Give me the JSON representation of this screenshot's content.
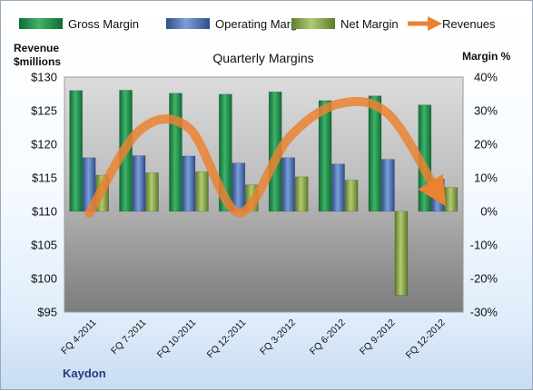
{
  "chart_data": {
    "type": "bar",
    "title": "Quarterly Margins",
    "footer": "Kaydon",
    "categories": [
      "FQ 4-2011",
      "FQ 7-2011",
      "FQ 10-2011",
      "FQ 12-2011",
      "FQ 3-2012",
      "FQ 6-2012",
      "FQ 9-2012",
      "FQ 12-2012"
    ],
    "left_axis": {
      "title_line1": "Revenue",
      "title_line2": "$millions",
      "range": [
        95,
        130
      ],
      "ticks": [
        95,
        100,
        105,
        110,
        115,
        120,
        125,
        130
      ],
      "tick_labels": [
        "$95",
        "$100",
        "$105",
        "$110",
        "$115",
        "$120",
        "$125",
        "$130"
      ]
    },
    "right_axis": {
      "title": "Margin %",
      "range": [
        -30,
        40
      ],
      "ticks": [
        -30,
        -20,
        -10,
        0,
        10,
        20,
        30,
        40
      ],
      "tick_labels": [
        "-30%",
        "-20%",
        "-10%",
        "0%",
        "10%",
        "20%",
        "30%",
        "40%"
      ]
    },
    "series": [
      {
        "name": "Gross Margin",
        "kind": "bar",
        "axis": "right",
        "color": "#1e8a4a",
        "values": [
          36.0,
          36.1,
          35.2,
          34.9,
          35.6,
          33.0,
          34.4,
          31.7
        ]
      },
      {
        "name": "Operating Margin",
        "kind": "bar",
        "axis": "right",
        "color": "#4a6fb0",
        "values": [
          16.0,
          16.6,
          16.5,
          14.4,
          16.0,
          14.1,
          15.5,
          9.6
        ]
      },
      {
        "name": "Net Margin",
        "kind": "bar",
        "axis": "right",
        "color": "#8aa84a",
        "values": [
          10.8,
          11.5,
          11.8,
          7.9,
          10.3,
          9.3,
          -25.0,
          7.1
        ]
      },
      {
        "name": "Revenues",
        "kind": "line",
        "axis": "left",
        "color": "#ea8232",
        "values": [
          109.7,
          122.0,
          122.4,
          109.8,
          120.9,
          126.0,
          124.5,
          112.6
        ]
      }
    ],
    "legend": "top",
    "grid": false
  }
}
